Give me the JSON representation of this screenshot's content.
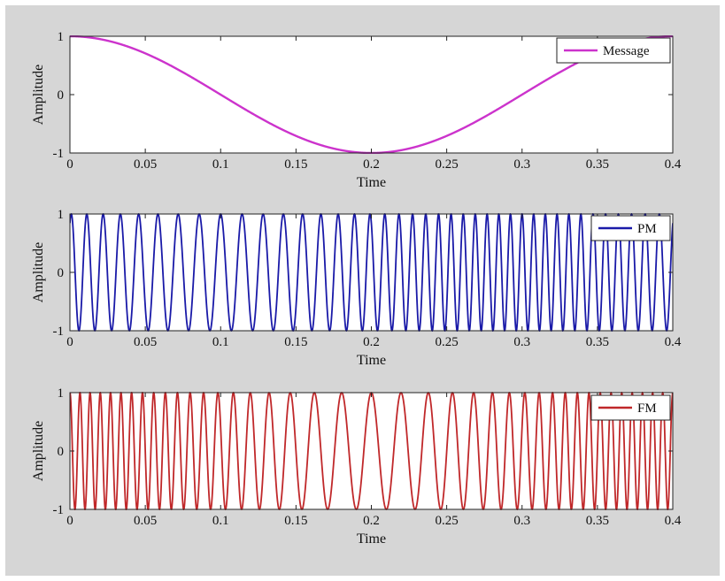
{
  "chart_data": [
    {
      "type": "line",
      "title": "",
      "xlabel": "Time",
      "ylabel": "Amplitude",
      "xlim": [
        0,
        0.4
      ],
      "ylim": [
        -1,
        1
      ],
      "xticks": [
        "0",
        "0.05",
        "0.1",
        "0.15",
        "0.2",
        "0.25",
        "0.3",
        "0.35",
        "0.4"
      ],
      "yticks": [
        "1",
        "0",
        "-1"
      ],
      "series": [
        {
          "name": "Message",
          "color": "#cc33cc",
          "formula": "cos(2*pi*2.5*t)",
          "message_freq_hz": 2.5
        }
      ],
      "legend": "top-right",
      "grid": false
    },
    {
      "type": "line",
      "title": "",
      "xlabel": "Time",
      "ylabel": "Amplitude",
      "xlim": [
        0,
        0.4
      ],
      "ylim": [
        -1,
        1
      ],
      "xticks": [
        "0",
        "0.05",
        "0.1",
        "0.15",
        "0.2",
        "0.25",
        "0.3",
        "0.35",
        "0.4"
      ],
      "yticks": [
        "1",
        "0",
        "-1"
      ],
      "series": [
        {
          "name": "PM",
          "color": "#1a1aa8",
          "formula": "cos(2*pi*fc*t + kp*m(t))",
          "carrier_freq_hz": 100,
          "phase_deviation_rad": 12
        }
      ],
      "legend": "top-right",
      "grid": false
    },
    {
      "type": "line",
      "title": "",
      "xlabel": "Time",
      "ylabel": "Amplitude",
      "xlim": [
        0,
        0.4
      ],
      "ylim": [
        -1,
        1
      ],
      "xticks": [
        "0",
        "0.05",
        "0.1",
        "0.15",
        "0.2",
        "0.25",
        "0.3",
        "0.35",
        "0.4"
      ],
      "yticks": [
        "1",
        "0",
        "-1"
      ],
      "series": [
        {
          "name": "FM",
          "color": "#c0282a",
          "formula": "cos(2*pi*fc*t + (fd/fm)*sin(2*pi*fm*t))",
          "carrier_freq_hz": 100,
          "freq_deviation_hz": 50
        }
      ],
      "legend": "top-right",
      "grid": false
    }
  ]
}
